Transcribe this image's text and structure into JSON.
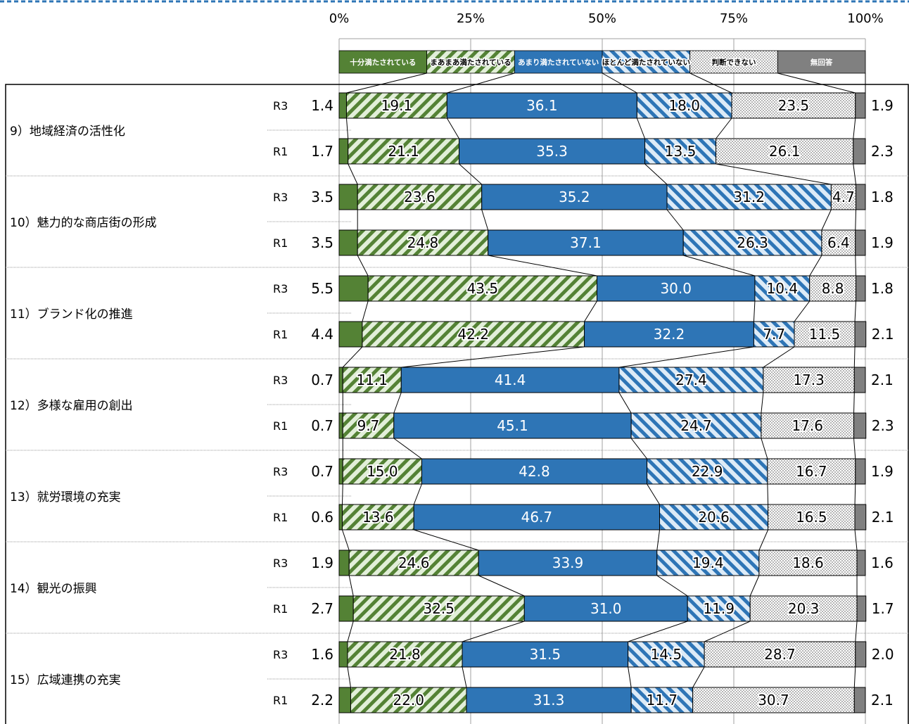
{
  "chart_data": {
    "type": "bar",
    "stacked": "100%",
    "orientation": "horizontal",
    "xlim": [
      0,
      100
    ],
    "x_ticks": [
      "0%",
      "25%",
      "50%",
      "75%",
      "100%"
    ],
    "grid": true,
    "legend_position": "top",
    "series": [
      {
        "name": "十分満たされている",
        "color": "#548235",
        "pattern": "solid",
        "label_color": "#ffffff"
      },
      {
        "name": "まあまあ満たされている",
        "color": "#548235",
        "pattern": "diagonal-light",
        "label_color": "#000000"
      },
      {
        "name": "あまり満たされていない",
        "color": "#2e75b6",
        "pattern": "solid",
        "label_color": "#ffffff"
      },
      {
        "name": "ほとんど満たされていない",
        "color": "#2e75b6",
        "pattern": "diagonal-light",
        "label_color": "#000000"
      },
      {
        "name": "判断できない",
        "color": "#808080",
        "pattern": "dots",
        "label_color": "#000000"
      },
      {
        "name": "無回答",
        "color": "#808080",
        "pattern": "solid",
        "label_color": "#ffffff"
      }
    ],
    "groups": [
      {
        "label": "9）地域経済の活性化",
        "rows": [
          {
            "year": "R3",
            "values": [
              1.4,
              19.1,
              36.1,
              18.0,
              23.5,
              1.9
            ]
          },
          {
            "year": "R1",
            "values": [
              1.7,
              21.1,
              35.3,
              13.5,
              26.1,
              2.3
            ]
          }
        ]
      },
      {
        "label": "10）魅力的な商店街の形成",
        "rows": [
          {
            "year": "R3",
            "values": [
              3.5,
              23.6,
              35.2,
              31.2,
              4.7,
              1.8
            ]
          },
          {
            "year": "R1",
            "values": [
              3.5,
              24.8,
              37.1,
              26.3,
              6.4,
              1.9
            ]
          }
        ]
      },
      {
        "label": "11）ブランド化の推進",
        "rows": [
          {
            "year": "R3",
            "values": [
              5.5,
              43.5,
              30.0,
              10.4,
              8.8,
              1.8
            ]
          },
          {
            "year": "R1",
            "values": [
              4.4,
              42.2,
              32.2,
              7.7,
              11.5,
              2.1
            ]
          }
        ]
      },
      {
        "label": "12）多様な雇用の創出",
        "rows": [
          {
            "year": "R3",
            "values": [
              0.7,
              11.1,
              41.4,
              27.4,
              17.3,
              2.1
            ]
          },
          {
            "year": "R1",
            "values": [
              0.7,
              9.7,
              45.1,
              24.7,
              17.6,
              2.3
            ]
          }
        ]
      },
      {
        "label": "13）就労環境の充実",
        "rows": [
          {
            "year": "R3",
            "values": [
              0.7,
              15.0,
              42.8,
              22.9,
              16.7,
              1.9
            ]
          },
          {
            "year": "R1",
            "values": [
              0.6,
              13.6,
              46.7,
              20.6,
              16.5,
              2.1
            ]
          }
        ]
      },
      {
        "label": "14）観光の振興",
        "rows": [
          {
            "year": "R3",
            "values": [
              1.9,
              24.6,
              33.9,
              19.4,
              18.6,
              1.6
            ]
          },
          {
            "year": "R1",
            "values": [
              2.7,
              32.5,
              31.0,
              11.9,
              20.3,
              1.7
            ]
          }
        ]
      },
      {
        "label": "15）広域連携の充実",
        "rows": [
          {
            "year": "R3",
            "values": [
              1.6,
              21.8,
              31.5,
              14.5,
              28.7,
              2.0
            ]
          },
          {
            "year": "R1",
            "values": [
              2.2,
              22.0,
              31.3,
              11.7,
              30.7,
              2.1
            ]
          }
        ]
      }
    ]
  }
}
